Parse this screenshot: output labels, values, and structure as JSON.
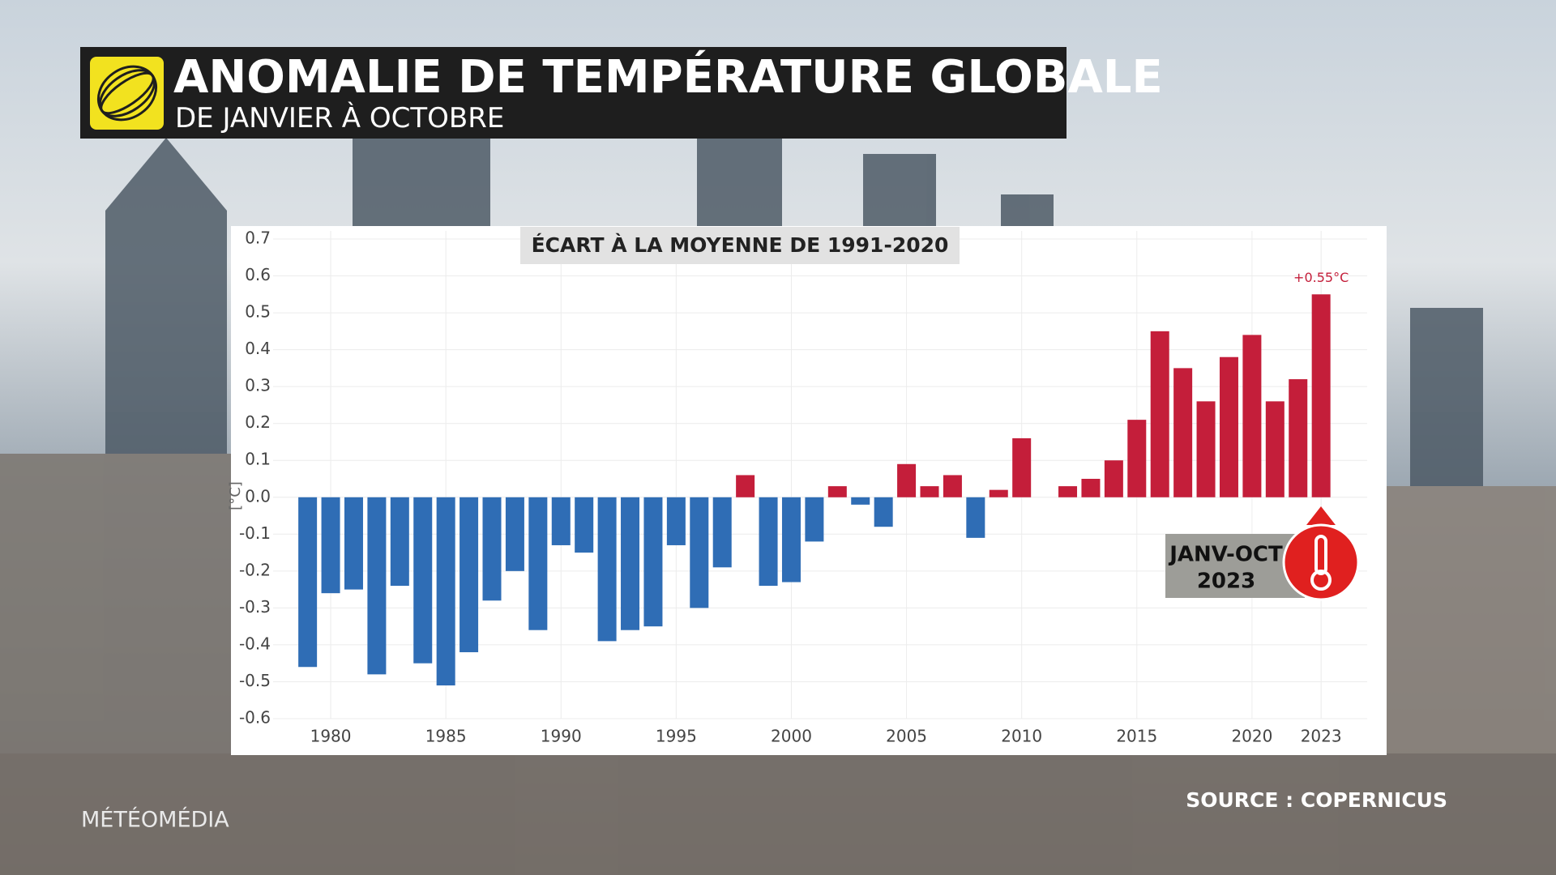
{
  "chart_data": {
    "type": "bar",
    "title": "ANOMALIE DE TEMPÉRATURE GLOBALE",
    "subtitle": "DE JANVIER À OCTOBRE",
    "panel_title": "ÉCART À LA MOYENNE DE 1991-2020",
    "y_label": "[°C]",
    "x": [
      1979,
      1980,
      1981,
      1982,
      1983,
      1984,
      1985,
      1986,
      1987,
      1988,
      1989,
      1990,
      1991,
      1992,
      1993,
      1994,
      1995,
      1996,
      1997,
      1998,
      1999,
      2000,
      2001,
      2002,
      2003,
      2004,
      2005,
      2006,
      2007,
      2008,
      2009,
      2010,
      2011,
      2012,
      2013,
      2014,
      2015,
      2016,
      2017,
      2018,
      2019,
      2020,
      2021,
      2022,
      2023
    ],
    "values": [
      -0.46,
      -0.26,
      -0.25,
      -0.48,
      -0.24,
      -0.45,
      -0.51,
      -0.42,
      -0.28,
      -0.2,
      -0.36,
      -0.13,
      -0.15,
      -0.39,
      -0.36,
      -0.35,
      -0.13,
      -0.3,
      -0.19,
      0.06,
      -0.24,
      -0.23,
      -0.12,
      0.03,
      -0.02,
      -0.08,
      0.09,
      0.03,
      0.06,
      -0.11,
      0.02,
      0.16,
      0.0,
      0.03,
      0.05,
      0.1,
      0.21,
      0.45,
      0.35,
      0.26,
      0.38,
      0.44,
      0.26,
      0.32,
      0.55
    ],
    "color_positive": "#c41e3a",
    "color_negative": "#2f6db5",
    "annotation": {
      "index": 44,
      "text": "+0.55°C"
    },
    "badge_lines": [
      "JANV-OCT",
      "2023"
    ],
    "xlim": [
      1977.5,
      2025
    ],
    "xticks": [
      1980,
      1985,
      1990,
      1995,
      2000,
      2005,
      2010,
      2015,
      2020,
      2023
    ],
    "ylim": [
      -0.6,
      0.7
    ],
    "yticks": [
      -0.6,
      -0.5,
      -0.4,
      -0.3,
      -0.2,
      -0.1,
      {
        "value": 0,
        "label": "0.0"
      },
      0.1,
      0.2,
      0.3,
      0.4,
      0.5,
      0.6,
      0.7
    ],
    "grid": true
  },
  "footer": {
    "brand": "MÉTÉOMÉDIA",
    "source": "SOURCE : COPERNICUS"
  }
}
